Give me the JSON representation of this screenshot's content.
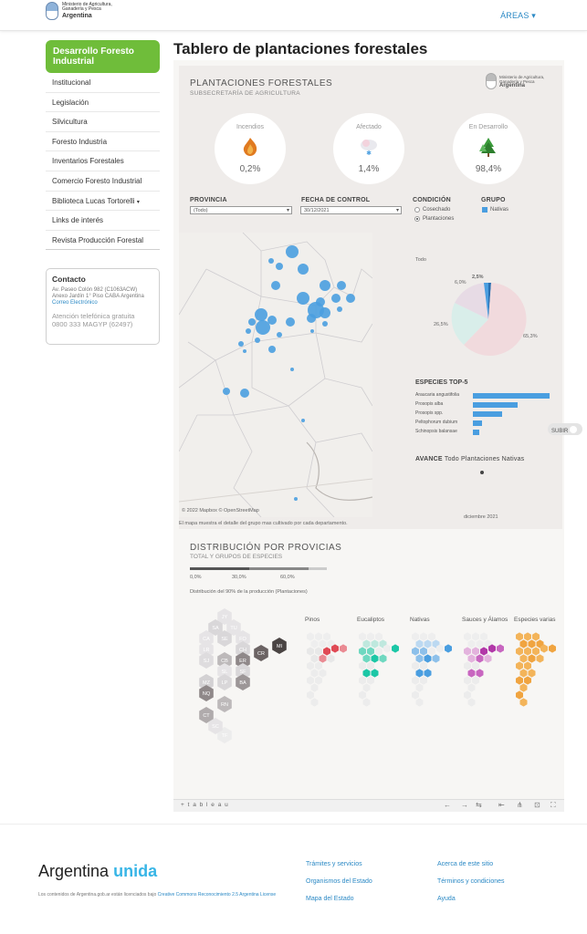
{
  "header": {
    "logo_line1": "Ministerio de Agricultura,",
    "logo_line2": "Ganadería y Pesca",
    "logo_line3": "Argentina",
    "areas_label": "ÁREAS"
  },
  "sidebar": {
    "active": "Desarrollo Foresto Industrial",
    "items": [
      {
        "label": "Institucional"
      },
      {
        "label": "Legislación"
      },
      {
        "label": "Silvicultura"
      },
      {
        "label": "Foresto Industria"
      },
      {
        "label": "Inventarios Forestales"
      },
      {
        "label": "Comercio Foresto Industrial"
      },
      {
        "label": "Biblioteca Lucas Tortorelli"
      },
      {
        "label": "Links de interés"
      },
      {
        "label": "Revista Producción Forestal"
      }
    ],
    "contact": {
      "title": "Contacto",
      "address1": "Av. Paseo Colón 982 (C1063ACW)",
      "address2": "Anexo Jardín 1° Piso CABA Argentina",
      "email_link": "Correo Electrónico",
      "phone_label": "Atención telefónica gratuita",
      "phone": "0800 333 MAGYP (62497)"
    }
  },
  "page_title": "Tablero de plantaciones forestales",
  "dashboard": {
    "title": "PLANTACIONES FORESTALES",
    "subtitle": "SUBSECRETARÍA DE AGRICULTURA",
    "logo_text1": "Ministerio de Agricultura,",
    "logo_text2": "Ganadería y Pesca",
    "logo_text3": "Argentina",
    "kpis": [
      {
        "label": "Incendios",
        "value": "0,2%"
      },
      {
        "label": "Afectado",
        "value": "1,4%"
      },
      {
        "label": "En Desarrollo",
        "value": "98,4%"
      }
    ],
    "filters": {
      "provincia_label": "PROVINCIA",
      "provincia_value": "(Todo)",
      "fecha_label": "FECHA DE CONTROL",
      "fecha_value": "30/12/2021",
      "condicion_label": "CONDICIÓN",
      "condicion_options": [
        "Cosechado",
        "Plantaciones"
      ],
      "condicion_selected": "Plantaciones",
      "grupo_label": "GRUPO",
      "grupo_value": "Nativas"
    },
    "pie_label": "Todo",
    "pie_values": [
      "2,5%",
      "6,0%",
      "26,5%",
      "65,3%"
    ],
    "species_title": "ESPECIES TOP-5",
    "species": [
      {
        "name": "Araucaria angustifolia",
        "value": 1.0
      },
      {
        "name": "Prosopis alba",
        "value": 0.58
      },
      {
        "name": "Prosopis spp.",
        "value": 0.38
      },
      {
        "name": "Peltophorum dubium",
        "value": 0.12
      },
      {
        "name": "Schinopsis balansae",
        "value": 0.08
      }
    ],
    "avance_label": "AVANCE",
    "avance_text": "Todo Plantaciones Nativas",
    "map_credit": "© 2022 Mapbox © OpenStreetMap",
    "map_note": "El mapa muestra el detalle del grupo mas cultivado por cada departamento.",
    "date_note": "diciembre 2021",
    "subir_label": "SUBIR",
    "dist_title": "DISTRIBUCIÓN POR PROVICIAS",
    "dist_subtitle": "TOTAL Y GRUPOS DE ESPECIES",
    "scale_labels": [
      "0,0%",
      "30,0%",
      "60,0%"
    ],
    "dist_note": "Distribución del 90% de la producción (Plantaciones)",
    "provinces": [
      "JY",
      "SA",
      "TU",
      "FO",
      "CA",
      "SE",
      "CH",
      "MI",
      "LR",
      "SJ",
      "CB",
      "ER",
      "CR",
      "SL",
      "SF",
      "MZ",
      "LP",
      "BA",
      "NQ",
      "RN",
      "CT",
      "TF",
      "SC"
    ],
    "groups": [
      "Pinos",
      "Eucaliptos",
      "Nativas",
      "Sauces y Álamos",
      "Especies varias"
    ],
    "toolbar_brand": "+ t a b l e a u"
  },
  "footer": {
    "brand1": "Argentina",
    "brand2": "unida",
    "license_text": "Los contenidos de Argentina.gob.ar están licenciados bajo",
    "license_link": "Creative Commons Reconocimiento 2.5 Argentina License",
    "links_col1": [
      "Trámites y servicios",
      "Organismos del Estado",
      "Mapa del Estado"
    ],
    "links_col2": [
      "Acerca de este sitio",
      "Términos y condiciones",
      "Ayuda"
    ]
  }
}
